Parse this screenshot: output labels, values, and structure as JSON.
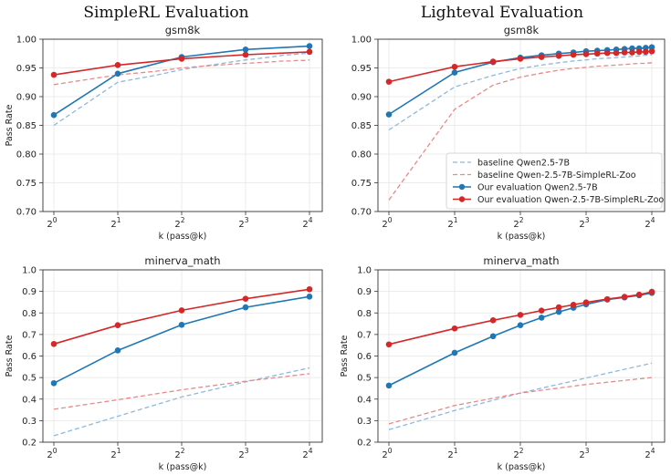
{
  "headings": {
    "left": "SimpleRL Evaluation",
    "right": "Lighteval Evaluation"
  },
  "colors": {
    "blue": "#1f77b4",
    "red": "#d62728",
    "blue_dashed": "#8fb8dc",
    "red_dashed": "#e8898a"
  },
  "chart_data": [
    {
      "type": "line",
      "title": "gsm8k",
      "xlabel": "k (pass@k)",
      "ylabel": "Pass Rate",
      "xscale": "log2",
      "xticks": [
        "2^0",
        "2^1",
        "2^2",
        "2^3",
        "2^4"
      ],
      "ylim": [
        0.7,
        1.0
      ],
      "yticks": [
        "0.70",
        "0.75",
        "0.80",
        "0.85",
        "0.90",
        "0.95",
        "1.00"
      ],
      "grid": true,
      "series": [
        {
          "name": "baseline Qwen2.5-7B",
          "style": "dashed",
          "color": "#8fb8dc",
          "x": [
            1,
            2,
            3,
            4,
            5,
            6,
            7,
            8,
            9,
            10,
            11,
            12,
            13,
            14,
            15,
            16
          ],
          "y": [
            0.85,
            0.925,
            0.937,
            0.947,
            0.953,
            0.957,
            0.961,
            0.964,
            0.966,
            0.968,
            0.97,
            0.972,
            0.973,
            0.974,
            0.975,
            0.977
          ]
        },
        {
          "name": "baseline Qwen-2.5-7B-SimpleRL-Zoo",
          "style": "dashed",
          "color": "#e8898a",
          "x": [
            1,
            2,
            3,
            4,
            5,
            6,
            7,
            8,
            9,
            10,
            11,
            12,
            13,
            14,
            15,
            16
          ],
          "y": [
            0.921,
            0.938,
            0.944,
            0.95,
            0.953,
            0.955,
            0.957,
            0.958,
            0.959,
            0.96,
            0.961,
            0.962,
            0.962,
            0.963,
            0.963,
            0.964
          ]
        },
        {
          "name": "Our evaluation Qwen2.5-7B",
          "style": "solid-markers",
          "color": "#1f77b4",
          "x": [
            1,
            2,
            4,
            8,
            16
          ],
          "y": [
            0.868,
            0.94,
            0.969,
            0.982,
            0.988
          ]
        },
        {
          "name": "Our evaluation Qwen-2.5-7B-SimpleRL-Zoo",
          "style": "solid-markers",
          "color": "#d62728",
          "x": [
            1,
            2,
            4,
            8,
            16
          ],
          "y": [
            0.938,
            0.955,
            0.966,
            0.973,
            0.978
          ]
        }
      ]
    },
    {
      "type": "line",
      "title": "gsm8k",
      "xlabel": "k (pass@k)",
      "ylabel": "",
      "xscale": "log2",
      "xticks": [
        "2^0",
        "2^1",
        "2^2",
        "2^3",
        "2^4"
      ],
      "ylim": [
        0.7,
        1.0
      ],
      "yticks": [
        "0.70",
        "0.75",
        "0.80",
        "0.85",
        "0.90",
        "0.95",
        "1.00"
      ],
      "grid": true,
      "legend": "lower-right",
      "series": [
        {
          "name": "baseline Qwen2.5-7B",
          "style": "dashed",
          "color": "#8fb8dc",
          "x": [
            1,
            2,
            3,
            4,
            5,
            6,
            7,
            8,
            9,
            10,
            11,
            12,
            13,
            14,
            15,
            16
          ],
          "y": [
            0.842,
            0.917,
            0.937,
            0.949,
            0.955,
            0.959,
            0.962,
            0.964,
            0.966,
            0.967,
            0.968,
            0.969,
            0.97,
            0.971,
            0.972,
            0.973
          ]
        },
        {
          "name": "baseline Qwen-2.5-7B-SimpleRL-Zoo",
          "style": "dashed",
          "color": "#e8898a",
          "x": [
            1,
            2,
            3,
            4,
            5,
            6,
            7,
            8,
            9,
            10,
            11,
            12,
            13,
            14,
            15,
            16
          ],
          "y": [
            0.72,
            0.878,
            0.92,
            0.934,
            0.941,
            0.946,
            0.949,
            0.951,
            0.953,
            0.954,
            0.955,
            0.956,
            0.957,
            0.958,
            0.958,
            0.959
          ]
        },
        {
          "name": "Our evaluation Qwen2.5-7B",
          "style": "solid-markers",
          "color": "#1f77b4",
          "x": [
            1,
            2,
            3,
            4,
            5,
            6,
            7,
            8,
            9,
            10,
            11,
            12,
            13,
            14,
            15,
            16
          ],
          "y": [
            0.869,
            0.942,
            0.96,
            0.968,
            0.972,
            0.975,
            0.977,
            0.979,
            0.98,
            0.981,
            0.982,
            0.983,
            0.984,
            0.984,
            0.985,
            0.986
          ]
        },
        {
          "name": "Our evaluation Qwen-2.5-7B-SimpleRL-Zoo",
          "style": "solid-markers",
          "color": "#d62728",
          "x": [
            1,
            2,
            3,
            4,
            5,
            6,
            7,
            8,
            9,
            10,
            11,
            12,
            13,
            14,
            15,
            16
          ],
          "y": [
            0.926,
            0.952,
            0.961,
            0.966,
            0.969,
            0.971,
            0.973,
            0.974,
            0.975,
            0.976,
            0.976,
            0.977,
            0.977,
            0.978,
            0.978,
            0.979
          ]
        }
      ]
    },
    {
      "type": "line",
      "title": "minerva_math",
      "xlabel": "k (pass@k)",
      "ylabel": "Pass Rate",
      "xscale": "log2",
      "xticks": [
        "2^0",
        "2^1",
        "2^2",
        "2^3",
        "2^4"
      ],
      "ylim": [
        0.2,
        1.0
      ],
      "yticks": [
        "0.2",
        "0.3",
        "0.4",
        "0.5",
        "0.6",
        "0.7",
        "0.8",
        "0.9",
        "1.0"
      ],
      "grid": true,
      "series": [
        {
          "name": "baseline Qwen2.5-7B",
          "style": "dashed",
          "color": "#8fb8dc",
          "x": [
            1,
            2,
            4,
            8,
            16
          ],
          "y": [
            0.23,
            0.32,
            0.41,
            0.48,
            0.545
          ]
        },
        {
          "name": "baseline Qwen-2.5-7B-SimpleRL-Zoo",
          "style": "dashed",
          "color": "#e8898a",
          "x": [
            1,
            2,
            4,
            8,
            16
          ],
          "y": [
            0.353,
            0.397,
            0.443,
            0.483,
            0.518
          ]
        },
        {
          "name": "Our evaluation Qwen2.5-7B",
          "style": "solid-markers",
          "color": "#1f77b4",
          "x": [
            1,
            2,
            4,
            8,
            16
          ],
          "y": [
            0.474,
            0.626,
            0.745,
            0.826,
            0.876
          ]
        },
        {
          "name": "Our evaluation Qwen-2.5-7B-SimpleRL-Zoo",
          "style": "solid-markers",
          "color": "#d62728",
          "x": [
            1,
            2,
            4,
            8,
            16
          ],
          "y": [
            0.656,
            0.743,
            0.812,
            0.866,
            0.91
          ]
        }
      ]
    },
    {
      "type": "line",
      "title": "minerva_math",
      "xlabel": "k (pass@k)",
      "ylabel": "Pass Rate",
      "xscale": "log2",
      "xticks": [
        "2^0",
        "2^1",
        "2^2",
        "2^3",
        "2^4"
      ],
      "ylim": [
        0.2,
        1.0
      ],
      "yticks": [
        "0.2",
        "0.3",
        "0.4",
        "0.5",
        "0.6",
        "0.7",
        "0.8",
        "0.9",
        "1.0"
      ],
      "grid": true,
      "series": [
        {
          "name": "baseline Qwen2.5-7B",
          "style": "dashed",
          "color": "#8fb8dc",
          "x": [
            1,
            2,
            4,
            8,
            16
          ],
          "y": [
            0.258,
            0.347,
            0.428,
            0.498,
            0.567
          ]
        },
        {
          "name": "baseline Qwen-2.5-7B-SimpleRL-Zoo",
          "style": "dashed",
          "color": "#e8898a",
          "x": [
            1,
            2,
            4,
            8,
            16
          ],
          "y": [
            0.285,
            0.37,
            0.428,
            0.468,
            0.5
          ]
        },
        {
          "name": "Our evaluation Qwen2.5-7B",
          "style": "solid-markers",
          "color": "#1f77b4",
          "x": [
            1,
            2,
            3,
            4,
            5,
            6,
            7,
            8,
            10,
            12,
            14,
            16
          ],
          "y": [
            0.463,
            0.615,
            0.692,
            0.743,
            0.778,
            0.805,
            0.824,
            0.84,
            0.862,
            0.872,
            0.882,
            0.893
          ]
        },
        {
          "name": "Our evaluation Qwen-2.5-7B-SimpleRL-Zoo",
          "style": "solid-markers",
          "color": "#d62728",
          "x": [
            1,
            2,
            3,
            4,
            5,
            6,
            7,
            8,
            10,
            12,
            14,
            16
          ],
          "y": [
            0.654,
            0.728,
            0.766,
            0.791,
            0.811,
            0.826,
            0.838,
            0.849,
            0.864,
            0.875,
            0.885,
            0.898
          ]
        }
      ]
    }
  ]
}
